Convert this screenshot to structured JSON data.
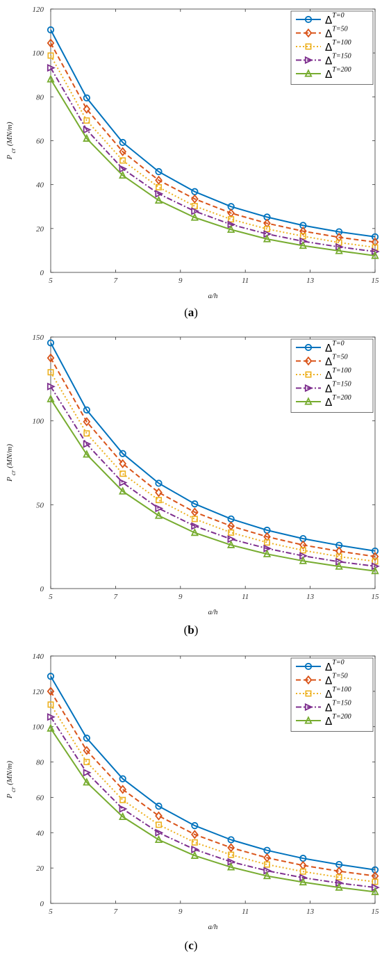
{
  "chart_data": [
    {
      "type": "line",
      "panel_label": "a",
      "xlabel": "a/h",
      "ylabel": {
        "main": "P",
        "sub": "cr",
        "unit": "(MN/m)"
      },
      "xlim": [
        5,
        15
      ],
      "ylim": [
        0,
        120
      ],
      "xticks": [
        5,
        7,
        9,
        11,
        13,
        15
      ],
      "yticks": [
        0,
        20,
        40,
        60,
        80,
        100,
        120
      ],
      "grid": false,
      "legend_position": "top-right",
      "x": [
        5,
        6.11,
        7.22,
        8.33,
        9.44,
        10.56,
        11.67,
        12.78,
        13.89,
        15
      ],
      "series": [
        {
          "name": "Δ^{T=0}",
          "legend_symbol": "Δ",
          "legend_superscript": "T=0",
          "color": "#0072BD",
          "dash": "solid",
          "marker": "circle",
          "values": [
            110.5,
            79.5,
            59.2,
            45.9,
            36.8,
            30.0,
            25.2,
            21.4,
            18.5,
            16.2
          ]
        },
        {
          "name": "Δ^{T=50}",
          "legend_symbol": "Δ",
          "legend_superscript": "T=50",
          "color": "#D95319",
          "dash": "dashed",
          "marker": "diamond",
          "values": [
            104.5,
            74.4,
            55.0,
            42.0,
            33.5,
            27.0,
            22.4,
            18.8,
            16.0,
            13.8
          ]
        },
        {
          "name": "Δ^{T=100}",
          "legend_symbol": "Δ",
          "legend_superscript": "T=100",
          "color": "#EDB120",
          "dash": "dotted",
          "marker": "square",
          "values": [
            98.8,
            69.2,
            51.0,
            38.8,
            30.2,
            24.2,
            19.8,
            16.5,
            13.6,
            11.4
          ]
        },
        {
          "name": "Δ^{T=150}",
          "legend_symbol": "Δ",
          "legend_superscript": "T=150",
          "color": "#7E2F8E",
          "dash": "dashdot",
          "marker": "triangle-right",
          "values": [
            93.2,
            65.0,
            47.2,
            35.8,
            27.9,
            21.8,
            17.5,
            14.2,
            11.6,
            9.5
          ]
        },
        {
          "name": "Δ^{T=200}",
          "legend_symbol": "Δ",
          "legend_superscript": "T=200",
          "color": "#77AC30",
          "dash": "solid",
          "marker": "triangle-up",
          "values": [
            88.0,
            61.0,
            44.2,
            32.8,
            25.0,
            19.5,
            15.2,
            12.2,
            9.8,
            7.6
          ]
        }
      ]
    },
    {
      "type": "line",
      "panel_label": "b",
      "xlabel": "a/h",
      "ylabel": {
        "main": "P",
        "sub": "cr",
        "unit": "(MN/m)"
      },
      "xlim": [
        5,
        15
      ],
      "ylim": [
        0,
        150
      ],
      "xticks": [
        5,
        7,
        9,
        11,
        13,
        15
      ],
      "yticks": [
        0,
        50,
        100,
        150
      ],
      "grid": false,
      "legend_position": "top-right",
      "x": [
        5,
        6.11,
        7.22,
        8.33,
        9.44,
        10.56,
        11.67,
        12.78,
        13.89,
        15
      ],
      "series": [
        {
          "name": "Δ^{T=0}",
          "legend_symbol": "Δ",
          "legend_superscript": "T=0",
          "color": "#0072BD",
          "dash": "solid",
          "marker": "circle",
          "values": [
            146.5,
            106.5,
            80.5,
            62.8,
            50.5,
            41.5,
            34.8,
            29.8,
            25.8,
            22.4
          ]
        },
        {
          "name": "Δ^{T=50}",
          "legend_symbol": "Δ",
          "legend_superscript": "T=50",
          "color": "#D95319",
          "dash": "dashed",
          "marker": "diamond",
          "values": [
            137.5,
            99.5,
            74.5,
            57.3,
            45.6,
            37.3,
            30.9,
            26.0,
            22.3,
            19.1
          ]
        },
        {
          "name": "Δ^{T=100}",
          "legend_symbol": "Δ",
          "legend_superscript": "T=100",
          "color": "#EDB120",
          "dash": "dotted",
          "marker": "square",
          "values": [
            129.0,
            92.5,
            68.5,
            52.8,
            41.5,
            33.4,
            27.5,
            22.8,
            19.1,
            16.2
          ]
        },
        {
          "name": "Δ^{T=150}",
          "legend_symbol": "Δ",
          "legend_superscript": "T=150",
          "color": "#7E2F8E",
          "dash": "dashdot",
          "marker": "triangle-right",
          "values": [
            120.5,
            86.2,
            63.2,
            47.8,
            37.3,
            29.5,
            23.9,
            19.5,
            16.0,
            13.3
          ]
        },
        {
          "name": "Δ^{T=200}",
          "legend_symbol": "Δ",
          "legend_superscript": "T=200",
          "color": "#77AC30",
          "dash": "solid",
          "marker": "triangle-up",
          "values": [
            113.0,
            80.0,
            58.0,
            43.5,
            33.3,
            26.0,
            20.6,
            16.5,
            13.2,
            10.5
          ]
        }
      ]
    },
    {
      "type": "line",
      "panel_label": "c",
      "xlabel": "a/h",
      "ylabel": {
        "main": "P",
        "sub": "cr",
        "unit": "(MN/m)"
      },
      "xlim": [
        5,
        15
      ],
      "ylim": [
        0,
        140
      ],
      "xticks": [
        5,
        7,
        9,
        11,
        13,
        15
      ],
      "yticks": [
        0,
        20,
        40,
        60,
        80,
        100,
        120,
        140
      ],
      "grid": false,
      "legend_position": "top-right",
      "x": [
        5,
        6.11,
        7.22,
        8.33,
        9.44,
        10.56,
        11.67,
        12.78,
        13.89,
        15
      ],
      "series": [
        {
          "name": "Δ^{T=0}",
          "legend_symbol": "Δ",
          "legend_superscript": "T=0",
          "color": "#0072BD",
          "dash": "solid",
          "marker": "circle",
          "values": [
            128.5,
            93.5,
            70.5,
            55.0,
            44.0,
            36.0,
            30.0,
            25.5,
            22.0,
            19.0
          ]
        },
        {
          "name": "Δ^{T=50}",
          "legend_symbol": "Δ",
          "legend_superscript": "T=50",
          "color": "#D95319",
          "dash": "dashed",
          "marker": "diamond",
          "values": [
            120.0,
            86.5,
            64.5,
            49.5,
            39.0,
            31.5,
            25.8,
            21.5,
            18.2,
            15.5
          ]
        },
        {
          "name": "Δ^{T=100}",
          "legend_symbol": "Δ",
          "legend_superscript": "T=100",
          "color": "#EDB120",
          "dash": "dotted",
          "marker": "square",
          "values": [
            112.5,
            80.0,
            58.5,
            44.5,
            34.5,
            27.5,
            22.0,
            18.0,
            14.8,
            12.2
          ]
        },
        {
          "name": "Δ^{T=150}",
          "legend_symbol": "Δ",
          "legend_superscript": "T=150",
          "color": "#7E2F8E",
          "dash": "dashdot",
          "marker": "triangle-right",
          "values": [
            105.5,
            74.0,
            53.5,
            40.0,
            30.5,
            23.5,
            18.5,
            14.5,
            11.5,
            9.0
          ]
        },
        {
          "name": "Δ^{T=200}",
          "legend_symbol": "Δ",
          "legend_superscript": "T=200",
          "color": "#77AC30",
          "dash": "solid",
          "marker": "triangle-up",
          "values": [
            99.0,
            68.5,
            49.0,
            36.0,
            27.0,
            20.5,
            15.5,
            12.0,
            9.0,
            6.5
          ]
        }
      ]
    }
  ]
}
